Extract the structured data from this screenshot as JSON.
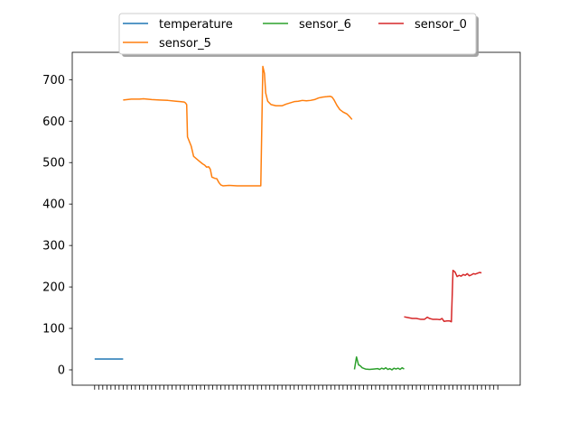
{
  "chart_data": {
    "type": "line",
    "title": "",
    "xlabel": "",
    "ylabel": "",
    "ylim": [
      -37,
      766
    ],
    "yticks": [
      0,
      100,
      200,
      300,
      400,
      500,
      600,
      700
    ],
    "x_count": 100,
    "x_tick_labels_shown": false,
    "grid": false,
    "legend": {
      "placement": "upper center (above axes)",
      "columns": 3,
      "entries": [
        "temperature",
        "sensor_5",
        "sensor_6",
        "sensor_0"
      ]
    },
    "series": [
      {
        "name": "temperature",
        "color": "#1f77b4",
        "points": [
          [
            0,
            26
          ],
          [
            7,
            26
          ]
        ]
      },
      {
        "name": "sensor_5",
        "color": "#ff7f0e",
        "points": [
          [
            7,
            651
          ],
          [
            9,
            653
          ],
          [
            11,
            653
          ],
          [
            12,
            654
          ],
          [
            14,
            652
          ],
          [
            16,
            651
          ],
          [
            18,
            650
          ],
          [
            20,
            648
          ],
          [
            21,
            647
          ],
          [
            22,
            646
          ],
          [
            22.3,
            644
          ],
          [
            22.6,
            640
          ],
          [
            22.8,
            562
          ],
          [
            23.7,
            540
          ],
          [
            24.3,
            515
          ],
          [
            25.5,
            505
          ],
          [
            26.5,
            497
          ],
          [
            27,
            494
          ],
          [
            27.5,
            489
          ],
          [
            28,
            490
          ],
          [
            28.4,
            484
          ],
          [
            28.8,
            465
          ],
          [
            29.5,
            462
          ],
          [
            30,
            461
          ],
          [
            30.5,
            452
          ],
          [
            31,
            446
          ],
          [
            31.5,
            444
          ],
          [
            33,
            445
          ],
          [
            35,
            444
          ],
          [
            37,
            444
          ],
          [
            39,
            444
          ],
          [
            40.8,
            444
          ],
          [
            41.3,
            732
          ],
          [
            41.7,
            715
          ],
          [
            42,
            668
          ],
          [
            42.5,
            648
          ],
          [
            43.3,
            640
          ],
          [
            44.5,
            637
          ],
          [
            46,
            637
          ],
          [
            47,
            641
          ],
          [
            48,
            644
          ],
          [
            49,
            647
          ],
          [
            50,
            648
          ],
          [
            51,
            650
          ],
          [
            52,
            649
          ],
          [
            53,
            650
          ],
          [
            54,
            652
          ],
          [
            55,
            656
          ],
          [
            56,
            658
          ],
          [
            57,
            659
          ],
          [
            57.8,
            660
          ],
          [
            58.3,
            658
          ],
          [
            58.8,
            651
          ],
          [
            59.5,
            638
          ],
          [
            60.2,
            628
          ],
          [
            61,
            622
          ],
          [
            62,
            617
          ],
          [
            62.6,
            611
          ],
          [
            63.2,
            604
          ]
        ]
      },
      {
        "name": "sensor_6",
        "color": "#2ca02c",
        "points": [
          [
            63.8,
            1
          ],
          [
            64.3,
            31
          ],
          [
            64.8,
            12
          ],
          [
            65.2,
            10
          ],
          [
            65.7,
            5
          ],
          [
            66.5,
            2
          ],
          [
            67.5,
            1
          ],
          [
            68.5,
            2
          ],
          [
            69.5,
            3
          ],
          [
            70,
            1
          ],
          [
            70.5,
            4
          ],
          [
            71,
            2
          ],
          [
            71.5,
            5
          ],
          [
            72,
            1
          ],
          [
            72.5,
            3
          ],
          [
            73,
            0
          ],
          [
            73.5,
            4
          ],
          [
            74,
            2
          ],
          [
            74.5,
            4
          ],
          [
            75,
            1
          ],
          [
            75.5,
            5
          ],
          [
            76,
            2
          ]
        ]
      },
      {
        "name": "sensor_0",
        "color": "#d62728",
        "points": [
          [
            76,
            128
          ],
          [
            77,
            126
          ],
          [
            78,
            124
          ],
          [
            79,
            124
          ],
          [
            80,
            122
          ],
          [
            81,
            122
          ],
          [
            81.7,
            127
          ],
          [
            82.2,
            124
          ],
          [
            83,
            122
          ],
          [
            84,
            122
          ],
          [
            84.8,
            121
          ],
          [
            85.3,
            124
          ],
          [
            85.8,
            117
          ],
          [
            86.5,
            118
          ],
          [
            87.2,
            118
          ],
          [
            87.6,
            116
          ],
          [
            88,
            240
          ],
          [
            88.5,
            236
          ],
          [
            89,
            225
          ],
          [
            89.5,
            228
          ],
          [
            90,
            226
          ],
          [
            90.5,
            230
          ],
          [
            91,
            228
          ],
          [
            91.5,
            232
          ],
          [
            92,
            227
          ],
          [
            92.5,
            229
          ],
          [
            93,
            232
          ],
          [
            93.5,
            231
          ],
          [
            94,
            233
          ],
          [
            94.5,
            235
          ],
          [
            95,
            234
          ]
        ]
      }
    ]
  }
}
